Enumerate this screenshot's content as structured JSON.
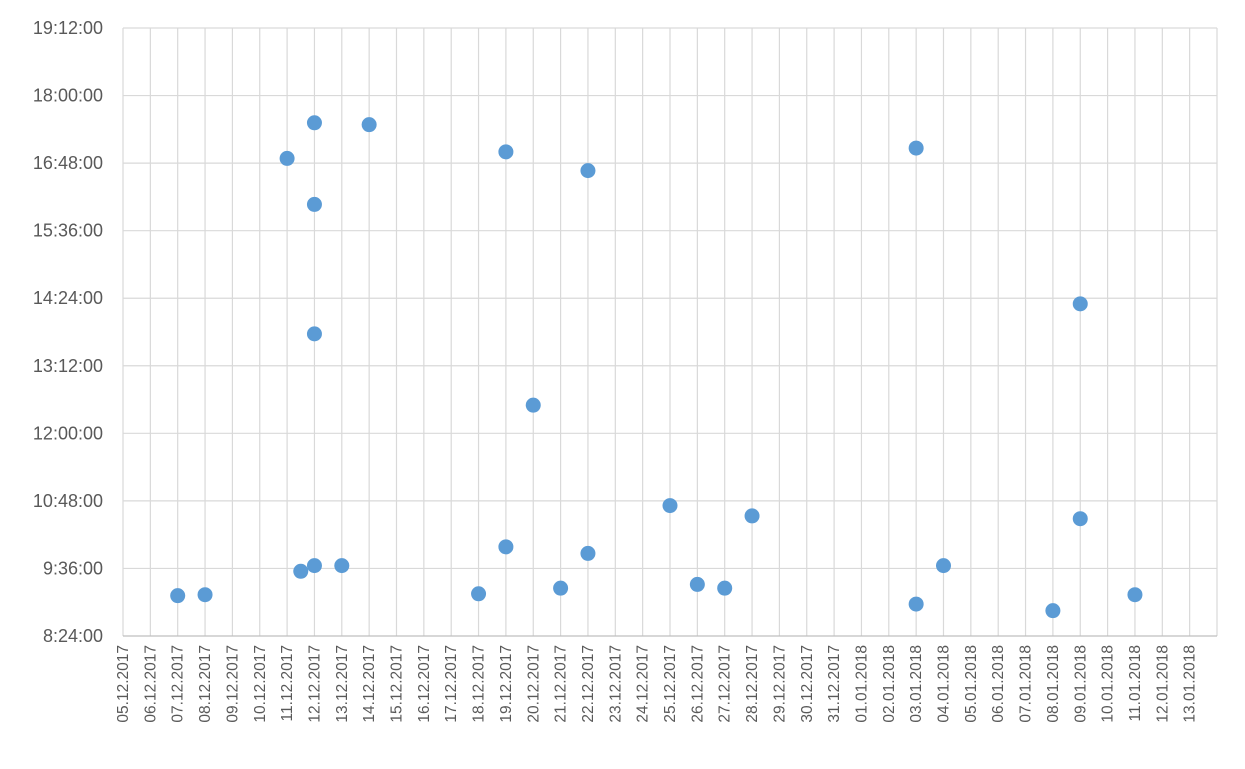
{
  "chart_data": {
    "type": "scatter",
    "title": "",
    "xlabel": "",
    "ylabel": "",
    "x_ticks": [
      "05.12.2017",
      "06.12.2017",
      "07.12.2017",
      "08.12.2017",
      "09.12.2017",
      "10.12.2017",
      "11.12.2017",
      "12.12.2017",
      "13.12.2017",
      "14.12.2017",
      "15.12.2017",
      "16.12.2017",
      "17.12.2017",
      "18.12.2017",
      "19.12.2017",
      "20.12.2017",
      "21.12.2017",
      "22.12.2017",
      "23.12.2017",
      "24.12.2017",
      "25.12.2017",
      "26.12.2017",
      "27.12.2017",
      "28.12.2017",
      "29.12.2017",
      "30.12.2017",
      "31.12.2017",
      "01.01.2018",
      "02.01.2018",
      "03.01.2018",
      "04.01.2018",
      "05.01.2018",
      "06.01.2018",
      "07.01.2018",
      "08.01.2018",
      "09.01.2018",
      "10.01.2018",
      "11.01.2018",
      "12.01.2018",
      "13.01.2018"
    ],
    "y_ticks": [
      "8:24:00",
      "9:36:00",
      "10:48:00",
      "12:00:00",
      "13:12:00",
      "14:24:00",
      "15:36:00",
      "16:48:00",
      "18:00:00",
      "19:12:00"
    ],
    "xlim": [
      "05.12.2017",
      "13.01.2018"
    ],
    "ylim": [
      "8:24:00",
      "19:12:00"
    ],
    "grid": true,
    "marker_color": "#5b9bd5",
    "points": [
      {
        "x": "07.12.2017 00:00",
        "y": "9:07"
      },
      {
        "x": "08.12.2017 00:00",
        "y": "9:08"
      },
      {
        "x": "11.12.2017 00:00",
        "y": "16:53"
      },
      {
        "x": "11.12.2017 12:00",
        "y": "9:33"
      },
      {
        "x": "12.12.2017 00:00",
        "y": "17:31"
      },
      {
        "x": "12.12.2017 00:00",
        "y": "16:04"
      },
      {
        "x": "12.12.2017 00:00",
        "y": "13:46"
      },
      {
        "x": "12.12.2017 00:00",
        "y": "9:39"
      },
      {
        "x": "13.12.2017 00:00",
        "y": "9:39"
      },
      {
        "x": "14.12.2017 00:00",
        "y": "17:29"
      },
      {
        "x": "18.12.2017 00:00",
        "y": "9:09"
      },
      {
        "x": "19.12.2017 00:00",
        "y": "17:00"
      },
      {
        "x": "19.12.2017 00:00",
        "y": "9:59"
      },
      {
        "x": "20.12.2017 00:00",
        "y": "12:30"
      },
      {
        "x": "21.12.2017 00:00",
        "y": "9:15"
      },
      {
        "x": "22.12.2017 00:00",
        "y": "16:40"
      },
      {
        "x": "22.12.2017 00:00",
        "y": "9:52"
      },
      {
        "x": "25.12.2017 00:00",
        "y": "10:43"
      },
      {
        "x": "26.12.2017 00:00",
        "y": "9:19"
      },
      {
        "x": "27.12.2017 00:00",
        "y": "9:15"
      },
      {
        "x": "28.12.2017 00:00",
        "y": "10:32"
      },
      {
        "x": "03.01.2018 00:00",
        "y": "17:04"
      },
      {
        "x": "03.01.2018 00:00",
        "y": "8:58"
      },
      {
        "x": "04.01.2018 00:00",
        "y": "9:39"
      },
      {
        "x": "08.01.2018 00:00",
        "y": "8:51"
      },
      {
        "x": "09.01.2018 00:00",
        "y": "14:18"
      },
      {
        "x": "09.01.2018 00:00",
        "y": "10:29"
      },
      {
        "x": "11.01.2018 00:00",
        "y": "9:08"
      }
    ]
  }
}
